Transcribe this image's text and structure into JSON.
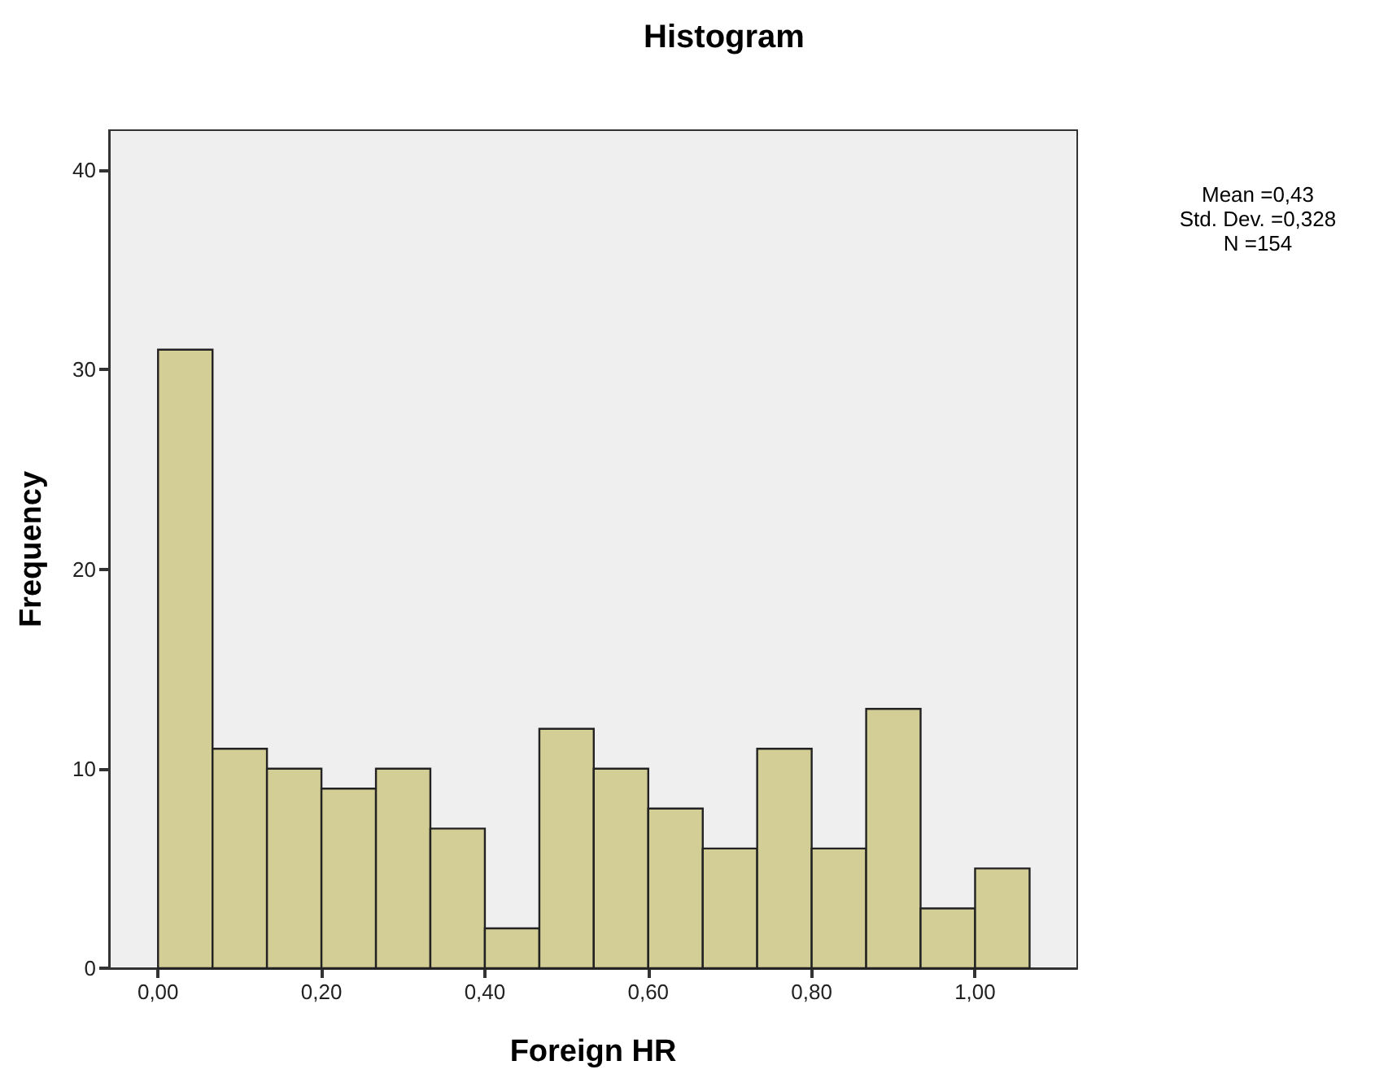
{
  "chart_data": {
    "type": "histogram",
    "title": "Histogram",
    "xlabel": "Foreign HR",
    "ylabel": "Frequency",
    "bins": [
      0,
      0.0667,
      0.1333,
      0.2,
      0.2667,
      0.3333,
      0.4,
      0.4667,
      0.5333,
      0.6,
      0.6667,
      0.7333,
      0.8,
      0.8667,
      0.9333,
      1,
      1.0667
    ],
    "values": [
      31,
      11,
      10,
      9,
      10,
      7,
      2,
      12,
      10,
      8,
      6,
      11,
      6,
      13,
      3,
      5
    ],
    "color": "#d3cd96",
    "xlim": [
      -0.06,
      1.125
    ],
    "xticks": [
      {
        "value": 0,
        "label": "0,00"
      },
      {
        "value": 0.2,
        "label": "0,20"
      },
      {
        "value": 0.4,
        "label": "0,40"
      },
      {
        "value": 0.6,
        "label": "0,60"
      },
      {
        "value": 0.8,
        "label": "0,80"
      },
      {
        "value": 1,
        "label": "1,00"
      }
    ],
    "ylim": [
      0,
      42
    ],
    "yticks": [
      0,
      10,
      20,
      30,
      40
    ],
    "annotations": [
      "Mean =0,43",
      "Std. Dev. =0,328",
      "N =154"
    ],
    "grid": false
  }
}
